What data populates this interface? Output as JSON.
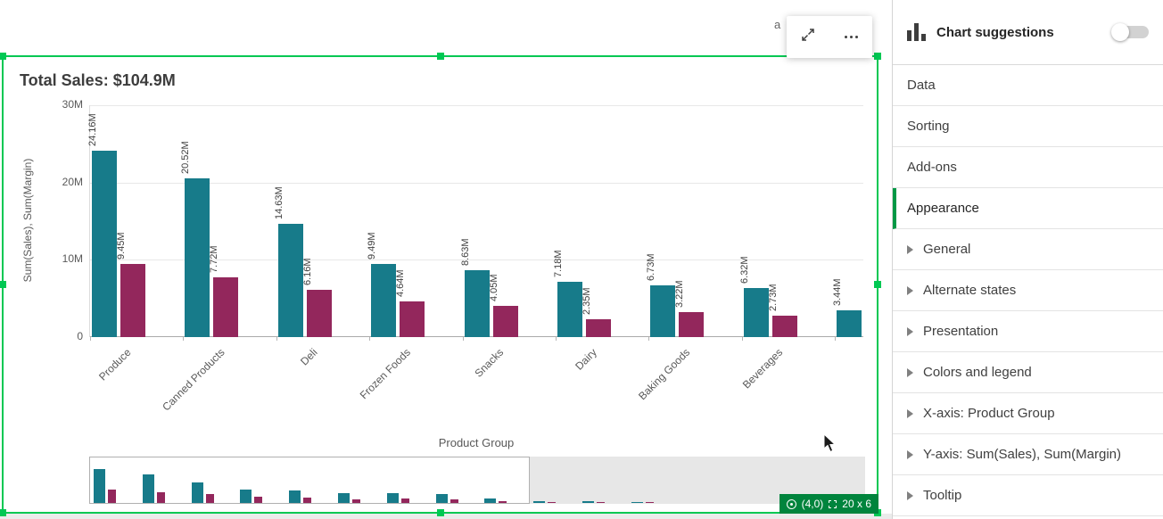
{
  "chart_object": {
    "toolbar": {
      "buttons": [
        "expand",
        "more-options"
      ]
    },
    "badge": {
      "coords": "(4,0)",
      "size": "20 x 6"
    },
    "partial_text": "a"
  },
  "chart_data": {
    "type": "bar",
    "title": "Total Sales: $104.9M",
    "xlabel": "Product Group",
    "ylabel": "Sum(Sales), Sum(Margin)",
    "units": "millions",
    "ylim": [
      0,
      30
    ],
    "yticks": [
      "0",
      "10M",
      "20M",
      "30M"
    ],
    "categories": [
      "Produce",
      "Canned Products",
      "Deli",
      "Frozen Foods",
      "Snacks",
      "Dairy",
      "Baking Goods",
      "Beverages",
      ""
    ],
    "series": [
      {
        "name": "Sum(Sales)",
        "color": "#177b8a",
        "values": [
          24.16,
          20.52,
          14.63,
          9.49,
          8.63,
          7.18,
          6.73,
          6.32,
          3.44
        ],
        "labels": [
          "24.16M",
          "20.52M",
          "14.63M",
          "9.49M",
          "8.63M",
          "7.18M",
          "6.73M",
          "6.32M",
          "3.44M"
        ]
      },
      {
        "name": "Sum(Margin)",
        "color": "#93275c",
        "values": [
          9.45,
          7.72,
          6.16,
          4.64,
          4.05,
          2.35,
          3.22,
          2.73,
          null
        ],
        "labels": [
          "9.45M",
          "7.72M",
          "6.16M",
          "4.64M",
          "4.05M",
          "2.35M",
          "3.22M",
          "2.73M",
          ""
        ]
      }
    ],
    "overview": {
      "window_groups": 9,
      "sales": [
        24.16,
        20.52,
        14.63,
        9.49,
        8.63,
        7.18,
        6.73,
        6.32,
        3.44,
        1.6,
        1.2,
        0.9
      ],
      "margin": [
        9.45,
        7.72,
        6.16,
        4.64,
        4.05,
        2.35,
        3.22,
        2.73,
        1.5,
        0.8,
        0.6,
        0.4
      ]
    }
  },
  "panel": {
    "header": {
      "label": "Chart suggestions",
      "toggle_state": "off"
    },
    "items": [
      {
        "label": "Data"
      },
      {
        "label": "Sorting"
      },
      {
        "label": "Add-ons"
      },
      {
        "label": "Appearance",
        "active": true
      }
    ],
    "accordion": [
      {
        "label": "General"
      },
      {
        "label": "Alternate states"
      },
      {
        "label": "Presentation"
      },
      {
        "label": "Colors and legend"
      },
      {
        "label": "X-axis: Product Group"
      },
      {
        "label": "Y-axis: Sum(Sales), Sum(Margin)"
      },
      {
        "label": "Tooltip"
      }
    ]
  },
  "colors": {
    "sales_bar": "#177b8a",
    "margin_bar": "#93275c",
    "selection_green": "#00c853",
    "badge_green": "#00843d"
  }
}
